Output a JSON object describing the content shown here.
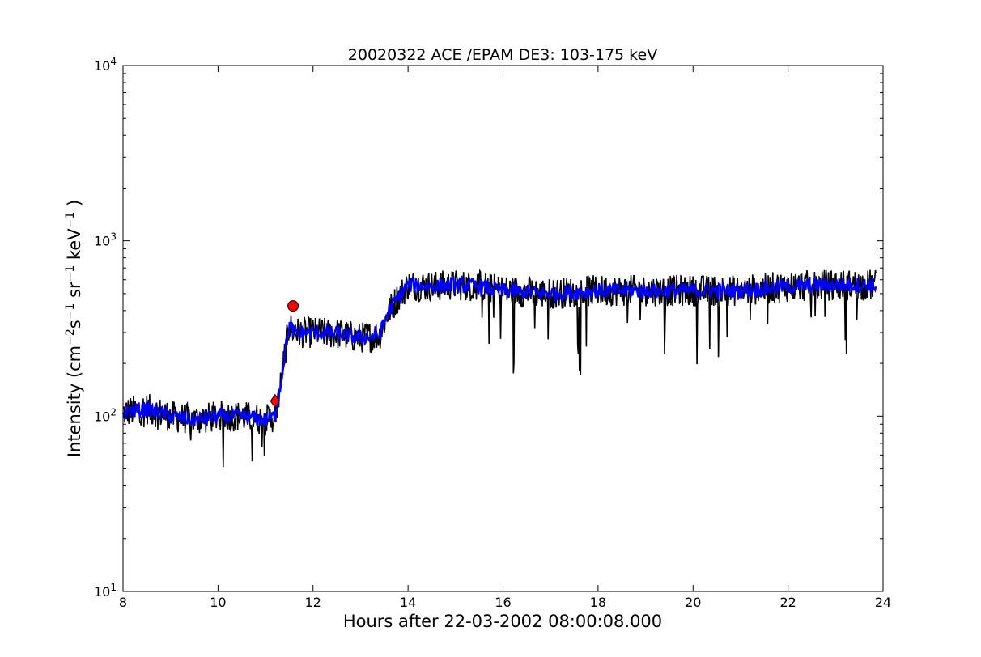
{
  "chart_data": {
    "type": "line",
    "title": "20020322 ACE /EPAM DE3: 103-175 keV",
    "xlabel": "Hours after 22-03-2002 08:00:08.000",
    "ylabel": "Intensity (cm$^{-2}$s$^{-1}$sr$^{-1}$keV$^{-1}$)",
    "xlim": [
      8,
      24
    ],
    "ylim": [
      10,
      10000
    ],
    "yscale": "log",
    "grid": false,
    "x_ticks": [
      "8",
      "10",
      "12",
      "14",
      "16",
      "18",
      "20",
      "22",
      "24"
    ],
    "y_ticks": [
      {
        "base": "10",
        "exp": "1"
      },
      {
        "base": "10",
        "exp": "2"
      },
      {
        "base": "10",
        "exp": "3"
      },
      {
        "base": "10",
        "exp": "4"
      }
    ],
    "series": [
      {
        "color": "#000000",
        "style": "raw",
        "x": [
          8.0,
          8.5,
          9.0,
          9.5,
          10.0,
          10.5,
          11.0,
          11.2,
          11.3,
          11.4,
          11.5,
          11.6,
          12.0,
          12.5,
          13.0,
          13.4,
          13.6,
          13.8,
          14.0,
          14.5,
          15.0,
          15.5,
          16.0,
          17.0,
          18.0,
          19.0,
          20.0,
          21.0,
          22.0,
          23.0,
          23.85
        ],
        "values": [
          105,
          110,
          100,
          95,
          100,
          100,
          95,
          100,
          140,
          220,
          330,
          300,
          300,
          295,
          280,
          290,
          400,
          480,
          560,
          550,
          560,
          550,
          520,
          500,
          520,
          520,
          520,
          520,
          550,
          560,
          560
        ]
      },
      {
        "color": "#0000ff",
        "style": "smoothed",
        "x": [
          8.0,
          8.5,
          9.0,
          9.5,
          10.0,
          10.5,
          11.0,
          11.2,
          11.3,
          11.4,
          11.5,
          11.6,
          12.0,
          12.5,
          13.0,
          13.4,
          13.6,
          13.8,
          14.0,
          14.5,
          15.0,
          15.5,
          16.0,
          17.0,
          18.0,
          19.0,
          20.0,
          21.0,
          22.0,
          23.0,
          23.85
        ],
        "values": [
          105,
          110,
          100,
          95,
          100,
          100,
          95,
          100,
          140,
          220,
          330,
          300,
          300,
          295,
          280,
          290,
          400,
          480,
          560,
          550,
          560,
          550,
          520,
          500,
          520,
          520,
          520,
          520,
          550,
          560,
          560
        ]
      }
    ],
    "markers": [
      {
        "shape": "circle",
        "x": 11.58,
        "value": 425,
        "color": "#ff0000"
      },
      {
        "shape": "diamond",
        "x": 11.2,
        "value": 122,
        "color": "#ff0000"
      }
    ]
  }
}
